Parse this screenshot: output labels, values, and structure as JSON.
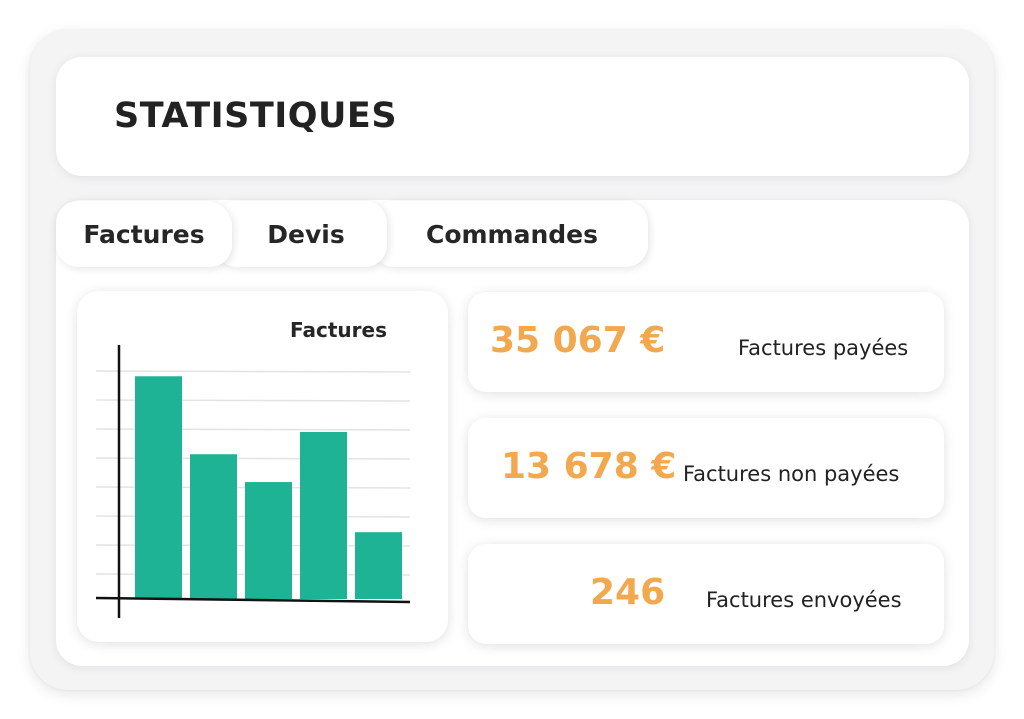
{
  "header": {
    "title": "STATISTIQUES"
  },
  "tabs": [
    {
      "label": "Factures"
    },
    {
      "label": "Devis"
    },
    {
      "label": "Commandes"
    }
  ],
  "chart_data": {
    "type": "bar",
    "title": "Factures",
    "xlabel": "",
    "ylabel": "",
    "categories": [
      "",
      "",
      "",
      "",
      ""
    ],
    "values": [
      8,
      5.2,
      4.2,
      6,
      2.4
    ],
    "ylim": [
      0,
      8.8
    ],
    "grid": true,
    "bar_color": "#1db394"
  },
  "stats": [
    {
      "value": "35 067 €",
      "label": "Factures payées"
    },
    {
      "value": "13 678 €",
      "label": "Factures non payées"
    },
    {
      "value": "246",
      "label": "Factures envoyées"
    }
  ],
  "colors": {
    "accent": "#f1a84e",
    "bar": "#1db394",
    "text": "#262626"
  }
}
